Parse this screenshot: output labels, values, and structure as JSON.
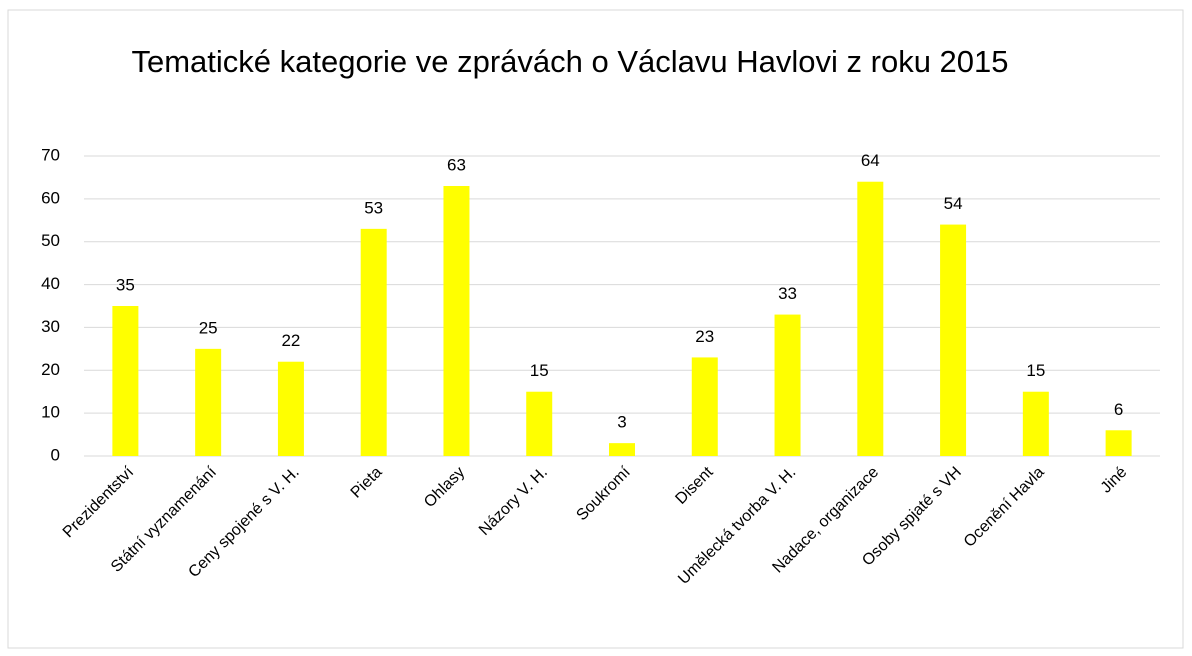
{
  "chart_data": {
    "type": "bar",
    "title": "Tematické kategorie ve zprávách o Václavu Havlovi z roku 2015",
    "categories": [
      "Prezidentství",
      "Státní vyznamenání",
      "Ceny spojené s V. H.",
      "Pieta",
      "Ohlasy",
      "Názory V. H.",
      "Soukromí",
      "Disent",
      "Umělecká tvorba V. H.",
      "Nadace, organizace",
      "Osoby spjaté s VH",
      "Ocenění Havla",
      "Jiné"
    ],
    "values": [
      35,
      25,
      22,
      53,
      63,
      15,
      3,
      23,
      33,
      64,
      54,
      15,
      6
    ],
    "color": "#ffff00",
    "ylim": [
      0,
      70
    ],
    "yticks": [
      0,
      10,
      20,
      30,
      40,
      50,
      60,
      70
    ],
    "grid": true,
    "data_labels": true
  }
}
